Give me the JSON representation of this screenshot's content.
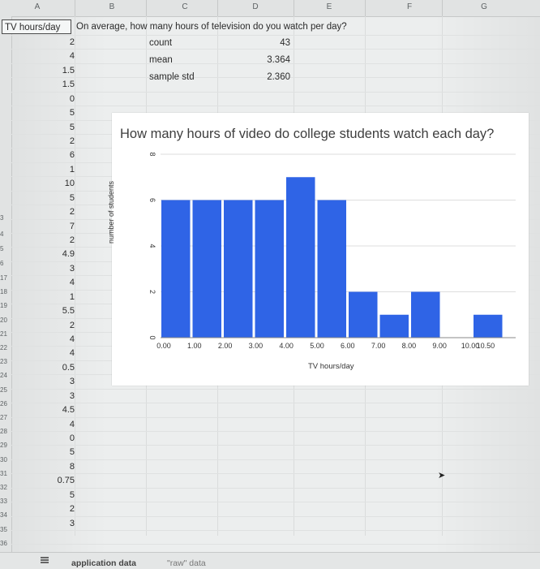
{
  "columns": [
    "A",
    "B",
    "C",
    "D",
    "E",
    "F",
    "G"
  ],
  "rows": {
    "visible_numbers_top": [
      "3",
      "4",
      "5",
      "6"
    ],
    "visible_numbers_low": [
      "17",
      "18",
      "19",
      "20",
      "21",
      "22",
      "23",
      "24",
      "25",
      "26",
      "27",
      "28",
      "29",
      "30",
      "31",
      "32",
      "33",
      "34",
      "35",
      "36"
    ]
  },
  "header": {
    "a1": "TV hours/day",
    "b1": "On average, how many hours of television do you watch per day?"
  },
  "tv_values": [
    "2",
    "4",
    "1.5",
    "1.5",
    "0",
    "5",
    "5",
    "2",
    "6",
    "1",
    "10",
    "5",
    "2",
    "7",
    "2",
    "4.9",
    "3",
    "4",
    "1",
    "5.5",
    "2",
    "4",
    "4",
    "0.5",
    "3",
    "3",
    "4.5",
    "4",
    "0",
    "5",
    "8",
    "0.75",
    "5",
    "2",
    "3"
  ],
  "stats": [
    {
      "label": "count",
      "value": "43"
    },
    {
      "label": "mean",
      "value": "3.364"
    },
    {
      "label": "sample std",
      "value": "2.360"
    }
  ],
  "sheet_tabs": {
    "active": "application data",
    "other": "\"raw\" data"
  },
  "colors": {
    "bar": "#2f64e6",
    "grid": "#dddddd"
  },
  "chart_data": {
    "type": "bar",
    "title": "How many hours of video do college students watch each day?",
    "xlabel": "TV hours/day",
    "ylabel": "number of students",
    "x_ticks": [
      "0.00",
      "1.00",
      "2.00",
      "3.00",
      "4.00",
      "5.00",
      "6.00",
      "7.00",
      "8.00",
      "9.00",
      "10.00",
      "10.50"
    ],
    "y_ticks": [
      "0",
      "2",
      "4",
      "6",
      "8"
    ],
    "ylim": [
      0,
      8
    ],
    "bins": [
      {
        "start": 0,
        "end": 1,
        "value": 6
      },
      {
        "start": 1,
        "end": 2,
        "value": 6
      },
      {
        "start": 2,
        "end": 3,
        "value": 6
      },
      {
        "start": 3,
        "end": 4,
        "value": 6
      },
      {
        "start": 4,
        "end": 5,
        "value": 7
      },
      {
        "start": 5,
        "end": 6,
        "value": 6
      },
      {
        "start": 6,
        "end": 7,
        "value": 2
      },
      {
        "start": 7,
        "end": 8,
        "value": 1
      },
      {
        "start": 8,
        "end": 9,
        "value": 2
      },
      {
        "start": 9,
        "end": 10,
        "value": 0
      },
      {
        "start": 10,
        "end": 11,
        "value": 1
      }
    ],
    "grid": true
  }
}
